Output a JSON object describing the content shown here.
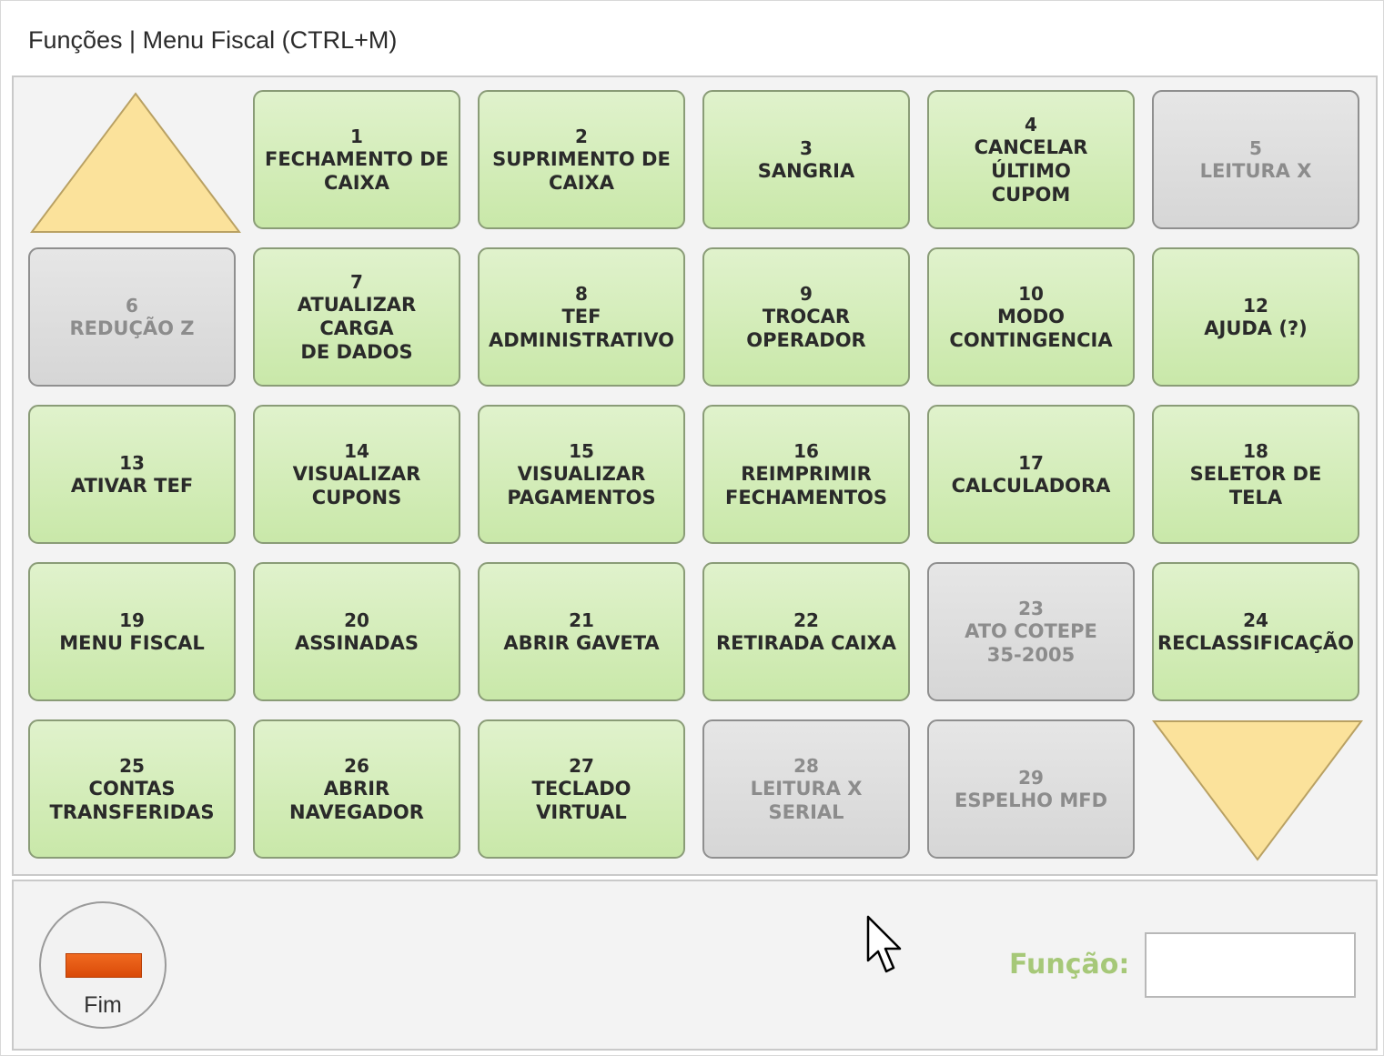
{
  "window": {
    "title": "Funções | Menu Fiscal (CTRL+M)"
  },
  "nav": {
    "up_icon": "triangle-up",
    "down_icon": "triangle-down"
  },
  "colors": {
    "enabled_tile": "#d3edb8",
    "disabled_tile": "#dddddd",
    "arrow_fill": "#fbe29b",
    "funcao_label": "#a6c878",
    "fim_bar": "#e85a10"
  },
  "tiles": [
    {
      "number": "1",
      "label": "FECHAMENTO DE\nCAIXA",
      "enabled": true
    },
    {
      "number": "2",
      "label": "SUPRIMENTO DE\nCAIXA",
      "enabled": true
    },
    {
      "number": "3",
      "label": "SANGRIA",
      "enabled": true
    },
    {
      "number": "4",
      "label": "CANCELAR ÚLTIMO\nCUPOM",
      "enabled": true
    },
    {
      "number": "5",
      "label": "LEITURA X",
      "enabled": false
    },
    {
      "number": "6",
      "label": "REDUÇÃO Z",
      "enabled": false
    },
    {
      "number": "7",
      "label": "ATUALIZAR CARGA\nDE DADOS",
      "enabled": true
    },
    {
      "number": "8",
      "label": "TEF\nADMINISTRATIVO",
      "enabled": true
    },
    {
      "number": "9",
      "label": "TROCAR\nOPERADOR",
      "enabled": true
    },
    {
      "number": "10",
      "label": "MODO\nCONTINGENCIA",
      "enabled": true
    },
    {
      "number": "12",
      "label": "AJUDA (?)",
      "enabled": true
    },
    {
      "number": "13",
      "label": "ATIVAR TEF",
      "enabled": true
    },
    {
      "number": "14",
      "label": "VISUALIZAR\nCUPONS",
      "enabled": true
    },
    {
      "number": "15",
      "label": "VISUALIZAR\nPAGAMENTOS",
      "enabled": true
    },
    {
      "number": "16",
      "label": "REIMPRIMIR\nFECHAMENTOS",
      "enabled": true
    },
    {
      "number": "17",
      "label": "CALCULADORA",
      "enabled": true
    },
    {
      "number": "18",
      "label": "SELETOR DE\nTELA",
      "enabled": true
    },
    {
      "number": "19",
      "label": "MENU FISCAL",
      "enabled": true
    },
    {
      "number": "20",
      "label": "ASSINADAS",
      "enabled": true
    },
    {
      "number": "21",
      "label": "ABRIR GAVETA",
      "enabled": true
    },
    {
      "number": "22",
      "label": "RETIRADA CAIXA",
      "enabled": true
    },
    {
      "number": "23",
      "label": "ATO COTEPE\n35-2005",
      "enabled": false
    },
    {
      "number": "24",
      "label": "RECLASSIFICAÇÃO",
      "enabled": true
    },
    {
      "number": "25",
      "label": "CONTAS\nTRANSFERIDAS",
      "enabled": true
    },
    {
      "number": "26",
      "label": "ABRIR\nNAVEGADOR",
      "enabled": true
    },
    {
      "number": "27",
      "label": "TECLADO\nVIRTUAL",
      "enabled": true
    },
    {
      "number": "28",
      "label": "LEITURA X\nSERIAL",
      "enabled": false
    },
    {
      "number": "29",
      "label": "ESPELHO MFD",
      "enabled": false
    }
  ],
  "footer": {
    "fim_label": "Fim",
    "funcao_label": "Função:",
    "funcao_value": ""
  }
}
